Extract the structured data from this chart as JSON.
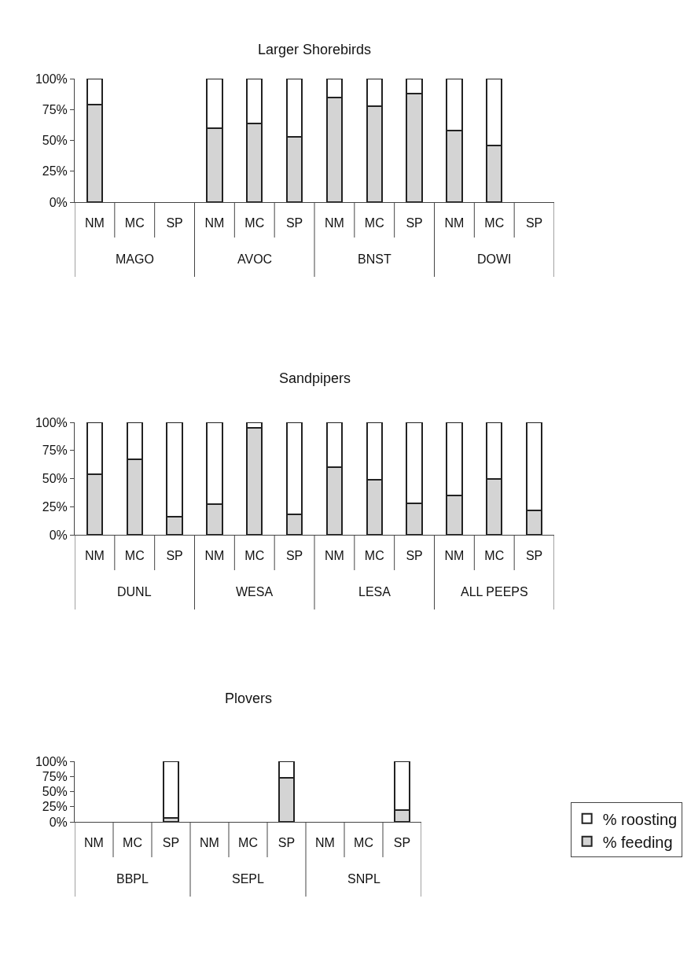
{
  "chart_data": [
    {
      "type": "bar",
      "stacked": true,
      "title": "Larger Shorebirds",
      "categories": [
        "NM",
        "MC",
        "SP",
        "NM",
        "MC",
        "SP",
        "NM",
        "MC",
        "SP",
        "NM",
        "MC",
        "SP"
      ],
      "annotations": [
        "MAGO",
        "AVOC",
        "BNST",
        "DOWI"
      ],
      "series": [
        {
          "color": "#d4d4d4",
          "values": [
            79,
            null,
            null,
            60,
            64,
            53,
            85,
            78,
            88,
            58,
            46,
            null
          ]
        },
        {
          "color": "#ffffff",
          "values": [
            21,
            null,
            null,
            40,
            36,
            47,
            15,
            22,
            12,
            42,
            54,
            null
          ]
        }
      ],
      "ylim": [
        0,
        100
      ],
      "yticks": [
        {
          "value": 0,
          "label": "0%"
        },
        {
          "value": 25,
          "label": "25%"
        },
        {
          "value": 50,
          "label": "50%"
        },
        {
          "value": 75,
          "label": "75%"
        },
        {
          "value": 100,
          "label": "100%"
        }
      ],
      "grid": false,
      "legend": false
    },
    {
      "type": "bar",
      "stacked": true,
      "title": "Sandpipers",
      "categories": [
        "NM",
        "MC",
        "SP",
        "NM",
        "MC",
        "SP",
        "NM",
        "MC",
        "SP",
        "NM",
        "MC",
        "SP"
      ],
      "annotations": [
        "DUNL",
        "WESA",
        "LESA",
        "ALL PEEPS"
      ],
      "series": [
        {
          "color": "#d4d4d4",
          "values": [
            54,
            67,
            16,
            27,
            95,
            18,
            60,
            49,
            28,
            35,
            50,
            22
          ]
        },
        {
          "color": "#ffffff",
          "values": [
            46,
            33,
            84,
            73,
            5,
            82,
            40,
            51,
            72,
            65,
            50,
            78
          ]
        }
      ],
      "ylim": [
        0,
        100
      ],
      "yticks": [
        {
          "value": 0,
          "label": "0%"
        },
        {
          "value": 25,
          "label": "25%"
        },
        {
          "value": 50,
          "label": "50%"
        },
        {
          "value": 75,
          "label": "75%"
        },
        {
          "value": 100,
          "label": "100%"
        }
      ],
      "grid": false,
      "legend": false
    },
    {
      "type": "bar",
      "stacked": true,
      "title": "Plovers",
      "categories": [
        "NM",
        "MC",
        "SP",
        "NM",
        "MC",
        "SP",
        "NM",
        "MC",
        "SP"
      ],
      "annotations": [
        "BBPL",
        "SEPL",
        "SNPL"
      ],
      "series": [
        {
          "name": "% feeding",
          "color": "#d4d4d4",
          "values": [
            null,
            null,
            6,
            null,
            null,
            73,
            null,
            null,
            19
          ]
        },
        {
          "name": "% roosting",
          "color": "#ffffff",
          "values": [
            null,
            null,
            94,
            null,
            null,
            27,
            null,
            null,
            81
          ]
        }
      ],
      "ylim": [
        0,
        100
      ],
      "yticks": [
        {
          "value": 0,
          "label": "0%"
        },
        {
          "value": 25,
          "label": "25%"
        },
        {
          "value": 50,
          "label": "50%"
        },
        {
          "value": 75,
          "label": "75%"
        },
        {
          "value": 100,
          "label": "100%"
        }
      ],
      "grid": false,
      "legend": "bottom right"
    }
  ]
}
